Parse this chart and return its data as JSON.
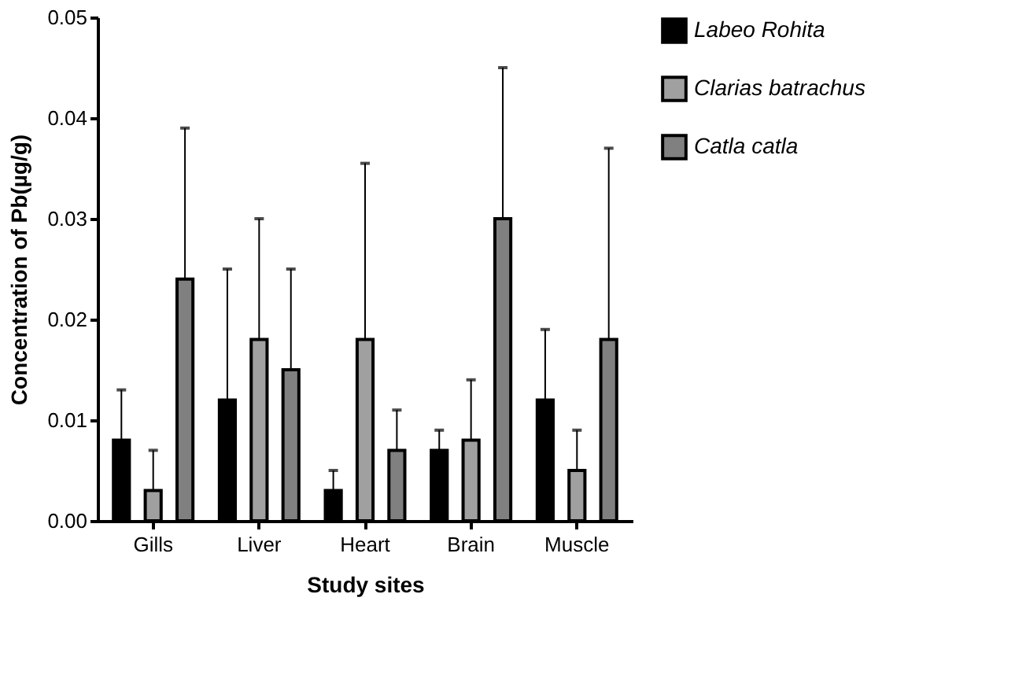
{
  "chart_data": {
    "type": "bar",
    "xlabel": "Study sites",
    "ylabel": "Concentration of Pb(µg/g)",
    "categories": [
      "Gills",
      "Liver",
      "Heart",
      "Brain",
      "Muscle"
    ],
    "ylim": [
      0,
      0.05
    ],
    "yticks": [
      {
        "value": 0,
        "label": "0.00"
      },
      {
        "value": 0.01,
        "label": "0.01"
      },
      {
        "value": 0.02,
        "label": "0.02"
      },
      {
        "value": 0.03,
        "label": "0.03"
      },
      {
        "value": 0.04,
        "label": "0.04"
      },
      {
        "value": 0.05,
        "label": "0.05"
      }
    ],
    "legend": "right",
    "grid": false,
    "series": [
      {
        "name": "Labeo Rohita",
        "color": "#000000",
        "values": [
          0.008,
          0.012,
          0.003,
          0.007,
          0.012
        ],
        "errors": [
          [
            0.008,
            0.013
          ],
          [
            0.012,
            0.025
          ],
          [
            0.003,
            0.005
          ],
          [
            0.007,
            0.009
          ],
          [
            0.012,
            0.019
          ]
        ]
      },
      {
        "name": "Clarias batrachus",
        "color": "#a0a0a0",
        "values": [
          0.003,
          0.018,
          0.018,
          0.008,
          0.005
        ],
        "errors": [
          [
            0.003,
            0.007
          ],
          [
            0.018,
            0.03
          ],
          [
            0.018,
            0.0355
          ],
          [
            0.008,
            0.014
          ],
          [
            0.005,
            0.009
          ]
        ]
      },
      {
        "name": "Catla catla",
        "color": "#808080",
        "values": [
          0.024,
          0.015,
          0.007,
          0.03,
          0.018
        ],
        "errors": [
          [
            0.024,
            0.039
          ],
          [
            0.015,
            0.025
          ],
          [
            0.007,
            0.011
          ],
          [
            0.03,
            0.045
          ],
          [
            0.018,
            0.037
          ]
        ]
      }
    ]
  }
}
